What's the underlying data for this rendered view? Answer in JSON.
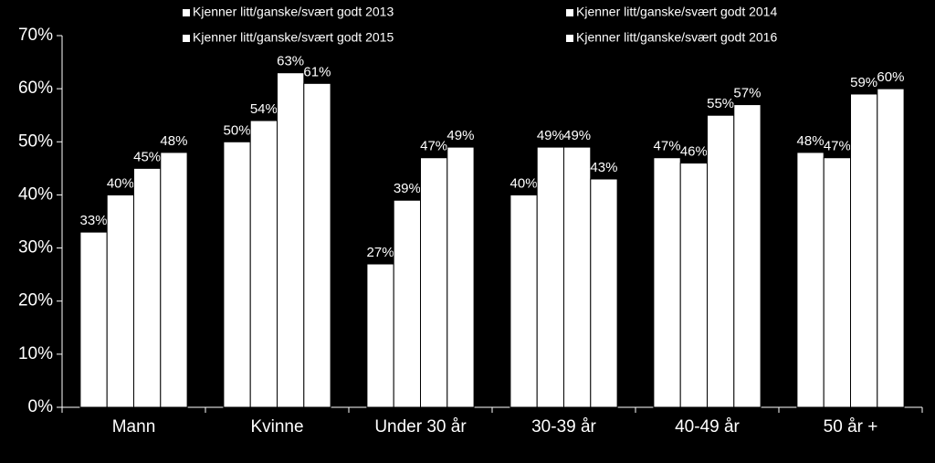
{
  "chart_data": {
    "type": "bar",
    "categories": [
      "Mann",
      "Kvinne",
      "Under 30 år",
      "30-39 år",
      "40-49 år",
      "50 år +"
    ],
    "series": [
      {
        "name": "Kjenner litt/ganske/svært godt 2013",
        "color": "#ffffff",
        "values": [
          33,
          50,
          27,
          40,
          47,
          48
        ],
        "value_labels": [
          "33%",
          "50%",
          "27%",
          "40%",
          "47%",
          "48%"
        ]
      },
      {
        "name": "Kjenner litt/ganske/svært godt 2014",
        "color": "#ffffff",
        "values": [
          40,
          54,
          39,
          49,
          46,
          47
        ],
        "value_labels": [
          "40%",
          "54%",
          "39%",
          "49%",
          "46%",
          "47%"
        ]
      },
      {
        "name": "Kjenner litt/ganske/svært godt 2015",
        "color": "#ffffff",
        "values": [
          45,
          63,
          47,
          49,
          55,
          59
        ],
        "value_labels": [
          "45%",
          "63%",
          "47%",
          "49%",
          "55%",
          "59%"
        ]
      },
      {
        "name": "Kjenner litt/ganske/svært godt 2016",
        "color": "#ffffff",
        "values": [
          48,
          61,
          49,
          43,
          57,
          60
        ],
        "value_labels": [
          "48%",
          "61%",
          "49%",
          "43%",
          "57%",
          "60%"
        ]
      }
    ],
    "ylim": [
      0,
      70
    ],
    "yticks": [
      {
        "value": 0,
        "label": "0%"
      },
      {
        "value": 10,
        "label": "10%"
      },
      {
        "value": 20,
        "label": "20%"
      },
      {
        "value": 30,
        "label": "30%"
      },
      {
        "value": 40,
        "label": "40%"
      },
      {
        "value": 50,
        "label": "50%"
      },
      {
        "value": 60,
        "label": "60%"
      },
      {
        "value": 70,
        "label": "70%"
      }
    ],
    "grid": false
  }
}
